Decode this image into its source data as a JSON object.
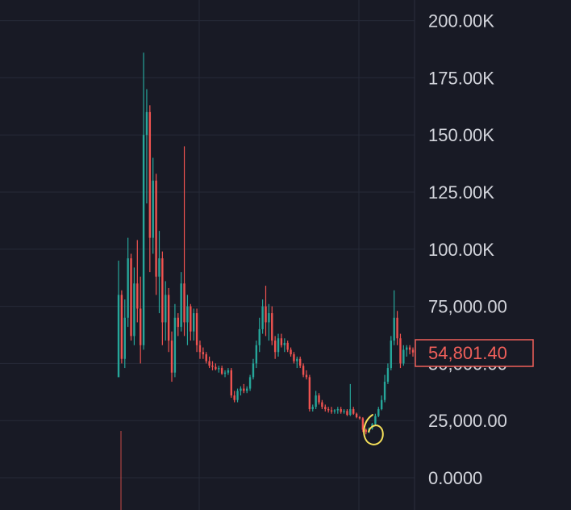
{
  "chart_data": {
    "type": "candlestick",
    "title": "",
    "xlabel": "",
    "ylabel": "",
    "ylim": [
      -2000,
      210000
    ],
    "grid": true,
    "y_ticks": [
      {
        "value": 0,
        "label": "0.0000"
      },
      {
        "value": 25000,
        "label": "25,000.00"
      },
      {
        "value": 50000,
        "label": "50,000.00"
      },
      {
        "value": 75000,
        "label": "75,000.00"
      },
      {
        "value": 100000,
        "label": "100.00K"
      },
      {
        "value": 125000,
        "label": "125.00K"
      },
      {
        "value": 150000,
        "label": "150.00K"
      },
      {
        "value": 175000,
        "label": "175.00K"
      },
      {
        "value": 200000,
        "label": "200.00K"
      }
    ],
    "last_price": {
      "value": 54801.4,
      "label": "54,801.40"
    },
    "candles": [
      [
        44000,
        95000,
        44000,
        80000
      ],
      [
        80000,
        82000,
        50000,
        52000
      ],
      [
        52000,
        78000,
        48000,
        70000
      ],
      [
        70000,
        105000,
        66000,
        96000
      ],
      [
        96000,
        98000,
        60000,
        62000
      ],
      [
        62000,
        92000,
        58000,
        85000
      ],
      [
        85000,
        104000,
        68000,
        74000
      ],
      [
        74000,
        88000,
        50000,
        58000
      ],
      [
        58000,
        186000,
        56000,
        150000
      ],
      [
        150000,
        170000,
        120000,
        160000
      ],
      [
        160000,
        163000,
        90000,
        105000
      ],
      [
        105000,
        140000,
        98000,
        130000
      ],
      [
        130000,
        133000,
        80000,
        88000
      ],
      [
        88000,
        108000,
        72000,
        96000
      ],
      [
        96000,
        99000,
        58000,
        68000
      ],
      [
        68000,
        86000,
        60000,
        80000
      ],
      [
        80000,
        83000,
        55000,
        60000
      ],
      [
        60000,
        64000,
        42000,
        46000
      ],
      [
        46000,
        76000,
        44000,
        70000
      ],
      [
        70000,
        72000,
        62000,
        66000
      ],
      [
        66000,
        90000,
        64000,
        85000
      ],
      [
        85000,
        145000,
        62000,
        68000
      ],
      [
        68000,
        80000,
        58000,
        75000
      ],
      [
        75000,
        76000,
        60000,
        64000
      ],
      [
        64000,
        74000,
        60000,
        72000
      ],
      [
        72000,
        74000,
        55000,
        58000
      ],
      [
        58000,
        60000,
        52000,
        55000
      ],
      [
        55000,
        57000,
        52000,
        54000
      ],
      [
        54000,
        55000,
        50000,
        51000
      ],
      [
        51000,
        53000,
        48000,
        49000
      ],
      [
        49000,
        51000,
        47000,
        48500
      ],
      [
        48500,
        50000,
        47000,
        47500
      ],
      [
        47500,
        49000,
        46000,
        48000
      ],
      [
        48000,
        49000,
        45000,
        45500
      ],
      [
        45500,
        47000,
        44000,
        46000
      ],
      [
        46000,
        48000,
        45000,
        47000
      ],
      [
        47000,
        48000,
        35000,
        36000
      ],
      [
        36000,
        38000,
        33000,
        34000
      ],
      [
        34000,
        39000,
        33000,
        38000
      ],
      [
        38000,
        40000,
        36000,
        39000
      ],
      [
        39000,
        41000,
        37000,
        38000
      ],
      [
        38000,
        40000,
        37000,
        39000
      ],
      [
        39000,
        45000,
        38000,
        44000
      ],
      [
        44000,
        52000,
        43000,
        50000
      ],
      [
        50000,
        60000,
        48000,
        58000
      ],
      [
        58000,
        70000,
        55000,
        65000
      ],
      [
        65000,
        78000,
        63000,
        75000
      ],
      [
        75000,
        84000,
        62000,
        68000
      ],
      [
        68000,
        76000,
        60000,
        72000
      ],
      [
        72000,
        75000,
        58000,
        60000
      ],
      [
        60000,
        62000,
        52000,
        55000
      ],
      [
        55000,
        63000,
        53000,
        61000
      ],
      [
        61000,
        63000,
        57000,
        58000
      ],
      [
        58000,
        61000,
        55000,
        59000
      ],
      [
        59000,
        60000,
        55000,
        56000
      ],
      [
        56000,
        57000,
        53000,
        54000
      ],
      [
        54000,
        55000,
        50000,
        51000
      ],
      [
        51000,
        53000,
        48000,
        52000
      ],
      [
        52000,
        53000,
        48000,
        49000
      ],
      [
        49000,
        50000,
        44000,
        45000
      ],
      [
        45000,
        47000,
        43000,
        44000
      ],
      [
        44000,
        45000,
        29000,
        30000
      ],
      [
        30000,
        32000,
        29000,
        31000
      ],
      [
        31000,
        38000,
        30000,
        36000
      ],
      [
        36000,
        37000,
        32000,
        33000
      ],
      [
        33000,
        34000,
        30000,
        31000
      ],
      [
        31000,
        32000,
        29000,
        30000
      ],
      [
        30000,
        31000,
        28500,
        29500
      ],
      [
        29500,
        31000,
        28000,
        29000
      ],
      [
        29000,
        30000,
        28000,
        29500
      ],
      [
        29500,
        31000,
        28000,
        30000
      ],
      [
        30000,
        31000,
        28000,
        28800
      ],
      [
        28800,
        30000,
        28000,
        29200
      ],
      [
        29200,
        30000,
        27000,
        27500
      ],
      [
        27500,
        41000,
        27000,
        30000
      ],
      [
        30000,
        31000,
        27500,
        28000
      ],
      [
        28000,
        28500,
        26000,
        26500
      ],
      [
        26500,
        27000,
        25500,
        26000
      ],
      [
        26000,
        26500,
        20000,
        21000
      ],
      [
        21000,
        21500,
        19000,
        20000
      ],
      [
        20000,
        22000,
        19500,
        21500
      ],
      [
        21500,
        24000,
        21000,
        23500
      ],
      [
        23500,
        28000,
        23000,
        27000
      ],
      [
        27000,
        31000,
        26500,
        30000
      ],
      [
        30000,
        36000,
        29500,
        34000
      ],
      [
        34000,
        45000,
        33000,
        42000
      ],
      [
        42000,
        50000,
        41000,
        48000
      ],
      [
        48000,
        62000,
        47000,
        60000
      ],
      [
        60000,
        82000,
        58000,
        70000
      ],
      [
        70000,
        73000,
        58000,
        61000
      ],
      [
        61000,
        63000,
        48000,
        50000
      ],
      [
        50000,
        58000,
        49000,
        56000
      ],
      [
        56000,
        58000,
        53000,
        57000
      ],
      [
        57000,
        58000,
        54000,
        56000
      ],
      [
        56000,
        57000,
        53000,
        54801.4
      ]
    ]
  },
  "colors": {
    "background": "#181a25",
    "grid": "#262a38",
    "up": "#26a69a",
    "down": "#ef5350",
    "annotation": "#f5e05a",
    "price_tag": "#ef5f5a"
  }
}
